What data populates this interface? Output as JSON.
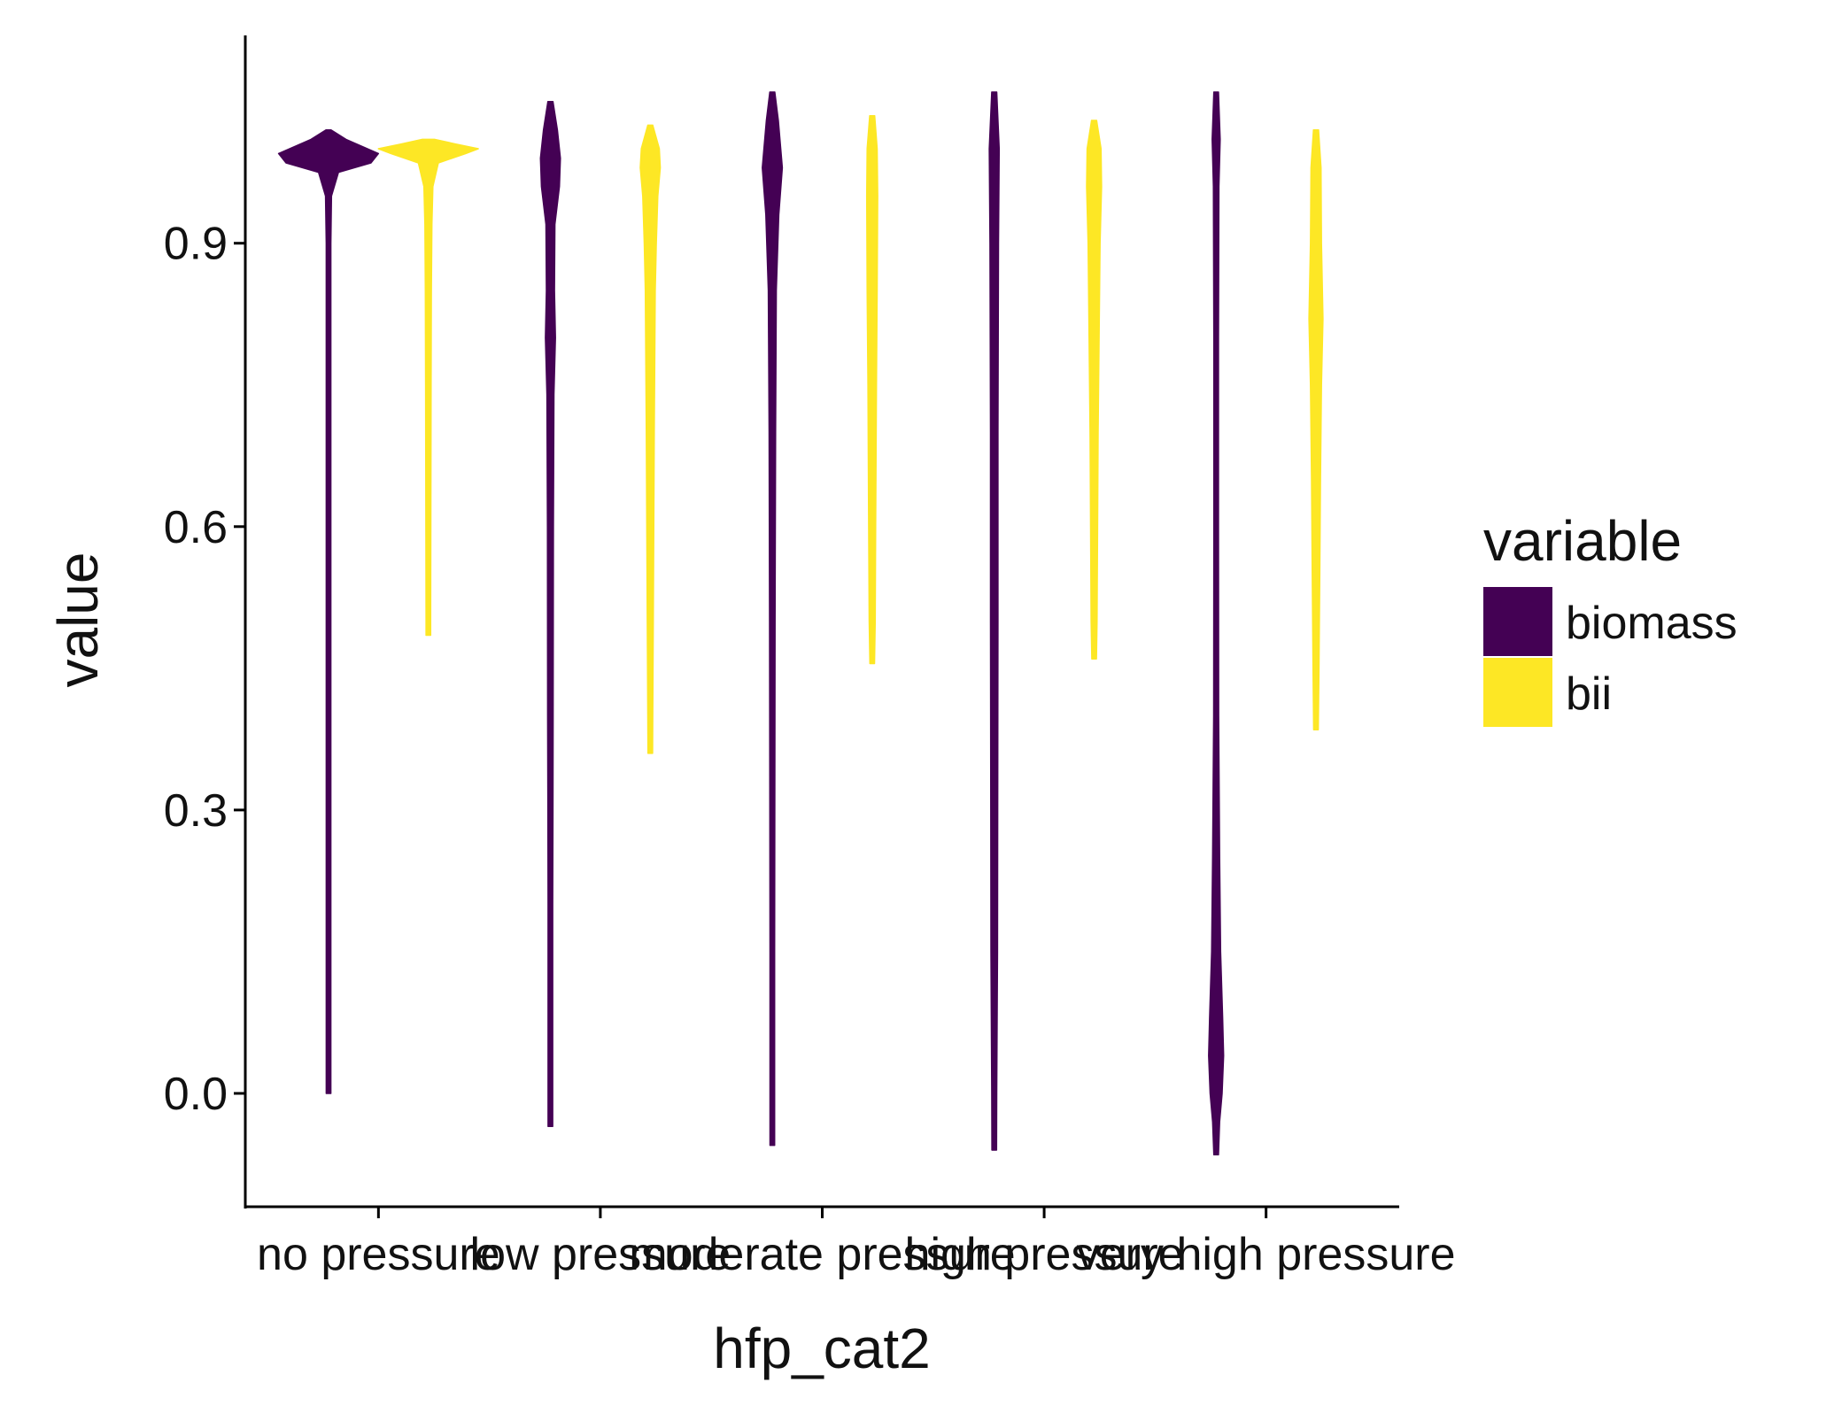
{
  "chart_data": {
    "type": "violin",
    "title": "",
    "xlabel": "hfp_cat2",
    "ylabel": "value",
    "ylim": [
      -0.12,
      1.12
    ],
    "yticks": [
      0.0,
      0.3,
      0.6,
      0.9
    ],
    "ytick_labels": [
      "0.0",
      "0.3",
      "0.6",
      "0.9"
    ],
    "categories": [
      "no pressure",
      "low pressure",
      "moderate pressure",
      "high pressure",
      "very high pressure"
    ],
    "legend": {
      "title": "variable",
      "position": "right",
      "entries": [
        {
          "name": "biomass",
          "color": "#440154"
        },
        {
          "name": "bii",
          "color": "#FDE725"
        }
      ]
    },
    "grid": false,
    "series": [
      {
        "name": "biomass",
        "color": "#440154",
        "violins": [
          {
            "category": "no pressure",
            "min": 0.0,
            "max": 1.02,
            "mode": 0.995,
            "profile": [
              [
                1.02,
                0.05
              ],
              [
                1.01,
                0.35
              ],
              [
                0.995,
                1.0
              ],
              [
                0.985,
                0.85
              ],
              [
                0.975,
                0.2
              ],
              [
                0.95,
                0.06
              ],
              [
                0.9,
                0.04
              ],
              [
                0.6,
                0.035
              ],
              [
                0.3,
                0.03
              ],
              [
                0.1,
                0.03
              ],
              [
                0.05,
                0.025
              ],
              [
                0.0,
                0.02
              ]
            ]
          },
          {
            "category": "low pressure",
            "min": -0.035,
            "max": 1.05,
            "mode": 0.99,
            "profile": [
              [
                1.05,
                0.05
              ],
              [
                1.02,
                0.14
              ],
              [
                0.99,
                0.2
              ],
              [
                0.96,
                0.18
              ],
              [
                0.92,
                0.09
              ],
              [
                0.85,
                0.08
              ],
              [
                0.8,
                0.1
              ],
              [
                0.74,
                0.07
              ],
              [
                0.6,
                0.06
              ],
              [
                0.4,
                0.055
              ],
              [
                0.3,
                0.05
              ],
              [
                0.2,
                0.045
              ],
              [
                0.1,
                0.045
              ],
              [
                0.0,
                0.04
              ],
              [
                -0.035,
                0.035
              ]
            ]
          },
          {
            "category": "moderate pressure",
            "min": -0.055,
            "max": 1.06,
            "mode": 0.98,
            "profile": [
              [
                1.06,
                0.05
              ],
              [
                1.03,
                0.12
              ],
              [
                0.98,
                0.2
              ],
              [
                0.93,
                0.13
              ],
              [
                0.85,
                0.08
              ],
              [
                0.7,
                0.065
              ],
              [
                0.5,
                0.055
              ],
              [
                0.3,
                0.05
              ],
              [
                0.15,
                0.045
              ],
              [
                0.0,
                0.04
              ],
              [
                -0.055,
                0.035
              ]
            ]
          },
          {
            "category": "high pressure",
            "min": -0.06,
            "max": 1.06,
            "mode": 1.0,
            "profile": [
              [
                1.06,
                0.05
              ],
              [
                1.0,
                0.1
              ],
              [
                0.9,
                0.085
              ],
              [
                0.7,
                0.075
              ],
              [
                0.5,
                0.075
              ],
              [
                0.3,
                0.07
              ],
              [
                0.15,
                0.065
              ],
              [
                0.05,
                0.055
              ],
              [
                0.0,
                0.05
              ],
              [
                -0.06,
                0.04
              ]
            ]
          },
          {
            "category": "very high pressure",
            "min": -0.065,
            "max": 1.06,
            "mode": 0.05,
            "profile": [
              [
                1.06,
                0.045
              ],
              [
                1.01,
                0.08
              ],
              [
                0.96,
                0.055
              ],
              [
                0.8,
                0.045
              ],
              [
                0.6,
                0.045
              ],
              [
                0.4,
                0.05
              ],
              [
                0.25,
                0.07
              ],
              [
                0.15,
                0.09
              ],
              [
                0.08,
                0.13
              ],
              [
                0.04,
                0.15
              ],
              [
                0.0,
                0.12
              ],
              [
                -0.03,
                0.07
              ],
              [
                -0.065,
                0.04
              ]
            ]
          }
        ]
      },
      {
        "name": "bii",
        "color": "#FDE725",
        "violins": [
          {
            "category": "no pressure",
            "min": 0.485,
            "max": 1.01,
            "mode": 1.0,
            "profile": [
              [
                1.01,
                0.12
              ],
              [
                1.005,
                0.55
              ],
              [
                1.0,
                1.0
              ],
              [
                0.995,
                0.75
              ],
              [
                0.985,
                0.2
              ],
              [
                0.96,
                0.09
              ],
              [
                0.92,
                0.07
              ],
              [
                0.85,
                0.06
              ],
              [
                0.75,
                0.055
              ],
              [
                0.6,
                0.05
              ],
              [
                0.5,
                0.045
              ],
              [
                0.485,
                0.04
              ]
            ]
          },
          {
            "category": "low pressure",
            "min": 0.36,
            "max": 1.025,
            "mode": 0.99,
            "profile": [
              [
                1.025,
                0.05
              ],
              [
                1.0,
                0.18
              ],
              [
                0.98,
                0.2
              ],
              [
                0.95,
                0.15
              ],
              [
                0.9,
                0.12
              ],
              [
                0.85,
                0.1
              ],
              [
                0.7,
                0.08
              ],
              [
                0.5,
                0.06
              ],
              [
                0.4,
                0.05
              ],
              [
                0.36,
                0.04
              ]
            ]
          },
          {
            "category": "moderate pressure",
            "min": 0.455,
            "max": 1.035,
            "mode": 0.98,
            "profile": [
              [
                1.035,
                0.05
              ],
              [
                1.0,
                0.1
              ],
              [
                0.95,
                0.11
              ],
              [
                0.85,
                0.1
              ],
              [
                0.75,
                0.085
              ],
              [
                0.6,
                0.07
              ],
              [
                0.5,
                0.06
              ],
              [
                0.455,
                0.045
              ]
            ]
          },
          {
            "category": "high pressure",
            "min": 0.46,
            "max": 1.03,
            "mode": 0.98,
            "profile": [
              [
                1.03,
                0.05
              ],
              [
                1.0,
                0.14
              ],
              [
                0.96,
                0.15
              ],
              [
                0.9,
                0.12
              ],
              [
                0.8,
                0.1
              ],
              [
                0.7,
                0.08
              ],
              [
                0.6,
                0.07
              ],
              [
                0.5,
                0.06
              ],
              [
                0.46,
                0.045
              ]
            ]
          },
          {
            "category": "very high pressure",
            "min": 0.385,
            "max": 1.02,
            "mode": 0.82,
            "profile": [
              [
                1.02,
                0.05
              ],
              [
                0.98,
                0.1
              ],
              [
                0.9,
                0.11
              ],
              [
                0.82,
                0.14
              ],
              [
                0.75,
                0.11
              ],
              [
                0.65,
                0.09
              ],
              [
                0.55,
                0.075
              ],
              [
                0.45,
                0.06
              ],
              [
                0.385,
                0.045
              ]
            ]
          }
        ]
      }
    ]
  }
}
